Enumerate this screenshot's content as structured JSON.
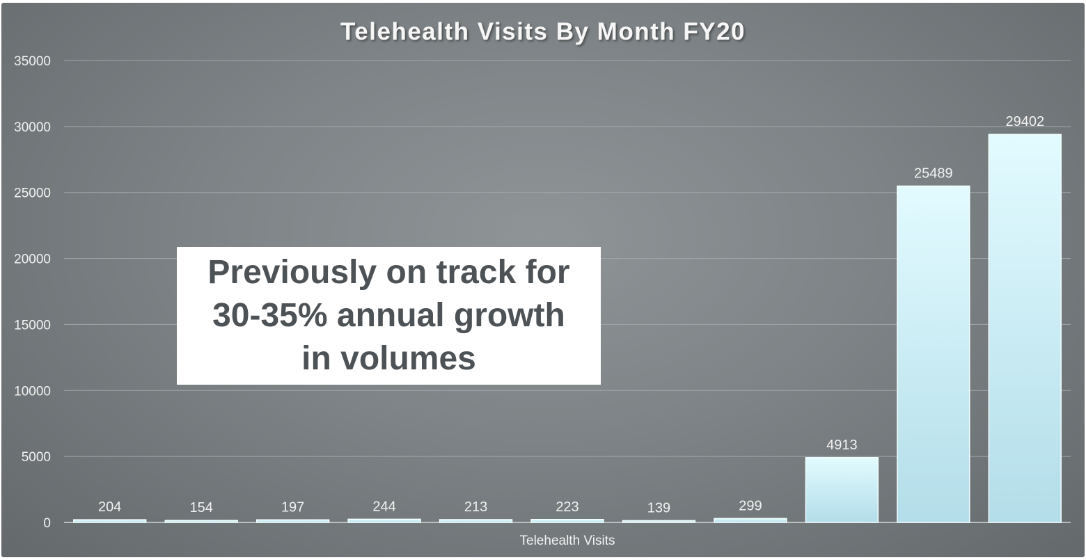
{
  "chart_data": {
    "type": "bar",
    "title": "Telehealth Visits By Month FY20",
    "xlabel": "Telehealth Visits",
    "ylabel": "",
    "ylim": [
      0,
      35000
    ],
    "yticks": [
      0,
      5000,
      10000,
      15000,
      20000,
      25000,
      30000,
      35000
    ],
    "grid": true,
    "values": [
      204,
      154,
      197,
      244,
      213,
      223,
      139,
      299,
      4913,
      25489,
      29402
    ],
    "bar_color": "#cdeff7",
    "background_color": "#7f8588"
  },
  "callout": {
    "text": "Previously on track for\n30-35% annual growth\nin volumes"
  }
}
